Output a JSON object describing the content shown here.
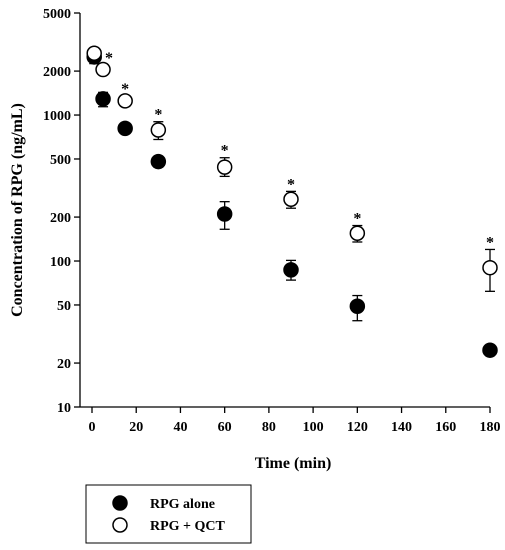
{
  "chart_data": {
    "type": "scatter",
    "title": "",
    "xlabel": "Time (min)",
    "ylabel": "Concentration of RPG (ng/mL)",
    "xlim": [
      0,
      180
    ],
    "ylim": [
      10,
      5000
    ],
    "yscale": "log",
    "x_ticks": [
      0,
      20,
      40,
      60,
      80,
      100,
      120,
      140,
      160,
      180
    ],
    "x_tick_labels": [
      "0",
      "20",
      "40",
      "60",
      "80",
      "100",
      "120",
      "140",
      "160",
      "180"
    ],
    "y_ticks": [
      10,
      20,
      50,
      100,
      200,
      500,
      1000,
      2000,
      5000
    ],
    "y_tick_labels": [
      "10",
      "20",
      "50",
      "100",
      "200",
      "500",
      "1000",
      "2000",
      "5000"
    ],
    "grid": false,
    "legend_position": "below-left",
    "series": [
      {
        "name": "RPG alone",
        "marker": "filled-circle",
        "color": "#000000",
        "points": [
          {
            "x": 1,
            "y": 2500,
            "err_low": 2250,
            "err_high": 2700
          },
          {
            "x": 5,
            "y": 1290,
            "err_low": 1140,
            "err_high": 1430
          },
          {
            "x": 15,
            "y": 810,
            "err_low": 750,
            "err_high": 870
          },
          {
            "x": 30,
            "y": 480,
            "err_low": 440,
            "err_high": 520
          },
          {
            "x": 60,
            "y": 210,
            "err_low": 165,
            "err_high": 255
          },
          {
            "x": 90,
            "y": 87,
            "err_low": 74,
            "err_high": 101
          },
          {
            "x": 120,
            "y": 49,
            "err_low": 39,
            "err_high": 58
          },
          {
            "x": 180,
            "y": 24.5,
            "err_low": 22.5,
            "err_high": 26.5
          }
        ]
      },
      {
        "name": "RPG + QCT",
        "marker": "open-circle",
        "color": "#000000",
        "points": [
          {
            "x": 1,
            "y": 2650,
            "err_low": 2450,
            "err_high": 2850,
            "significant": false
          },
          {
            "x": 5,
            "y": 2050,
            "err_low": 1900,
            "err_high": 2200,
            "significant": true
          },
          {
            "x": 15,
            "y": 1250,
            "err_low": 1150,
            "err_high": 1350,
            "significant": true
          },
          {
            "x": 30,
            "y": 790,
            "err_low": 680,
            "err_high": 900,
            "significant": true
          },
          {
            "x": 60,
            "y": 440,
            "err_low": 380,
            "err_high": 510,
            "significant": true
          },
          {
            "x": 90,
            "y": 265,
            "err_low": 230,
            "err_high": 300,
            "significant": true
          },
          {
            "x": 120,
            "y": 155,
            "err_low": 135,
            "err_high": 175,
            "significant": true
          },
          {
            "x": 180,
            "y": 90,
            "err_low": 62,
            "err_high": 120,
            "significant": true
          }
        ]
      }
    ],
    "annotation_symbol": "*",
    "legend": [
      {
        "label": "RPG alone",
        "marker": "filled-circle"
      },
      {
        "label": "RPG + QCT",
        "marker": "open-circle"
      }
    ]
  }
}
